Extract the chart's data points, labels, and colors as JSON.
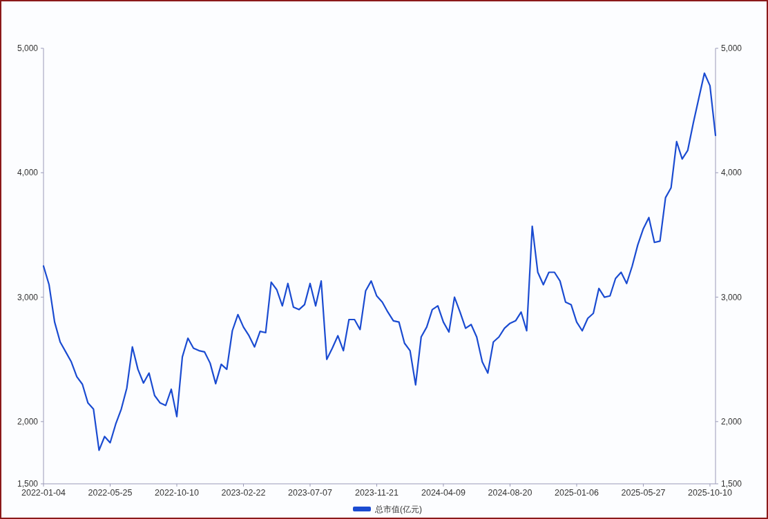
{
  "chart_data": {
    "type": "line",
    "categories": [
      "2022-01-04",
      null,
      null,
      null,
      null,
      null,
      null,
      null,
      null,
      null,
      null,
      null,
      "2022-05-25",
      null,
      null,
      null,
      null,
      null,
      null,
      null,
      null,
      null,
      null,
      null,
      "2022-10-10",
      null,
      null,
      null,
      null,
      null,
      null,
      null,
      null,
      null,
      null,
      null,
      "2023-02-22",
      null,
      null,
      null,
      null,
      null,
      null,
      null,
      null,
      null,
      null,
      null,
      "2023-07-07",
      null,
      null,
      null,
      null,
      null,
      null,
      null,
      null,
      null,
      null,
      null,
      "2023-11-21",
      null,
      null,
      null,
      null,
      null,
      null,
      null,
      null,
      null,
      null,
      null,
      "2024-04-09",
      null,
      null,
      null,
      null,
      null,
      null,
      null,
      null,
      null,
      null,
      null,
      "2024-08-20",
      null,
      null,
      null,
      null,
      null,
      null,
      null,
      null,
      null,
      null,
      null,
      "2025-01-06",
      null,
      null,
      null,
      null,
      null,
      null,
      null,
      null,
      null,
      null,
      null,
      "2025-05-27",
      null,
      null,
      null,
      null,
      null,
      null,
      null,
      null,
      null,
      null,
      null,
      "2025-10-10",
      null
    ],
    "series": [
      {
        "name": "总市值(亿元)",
        "color": "#1a4bd1",
        "values": [
          3250,
          3100,
          2800,
          2640,
          2560,
          2480,
          2360,
          2300,
          2150,
          2100,
          1770,
          1880,
          1830,
          1980,
          2100,
          2270,
          2600,
          2420,
          2310,
          2390,
          2210,
          2150,
          2130,
          2260,
          2040,
          2520,
          2670,
          2590,
          2570,
          2560,
          2470,
          2305,
          2460,
          2420,
          2730,
          2860,
          2760,
          2690,
          2600,
          2725,
          2715,
          3120,
          3060,
          2930,
          3110,
          2920,
          2900,
          2940,
          3110,
          2930,
          3130,
          2500,
          2590,
          2690,
          2570,
          2820,
          2820,
          2740,
          3050,
          3130,
          3010,
          2960,
          2880,
          2810,
          2800,
          2630,
          2570,
          2295,
          2680,
          2760,
          2900,
          2930,
          2800,
          2720,
          3000,
          2880,
          2750,
          2780,
          2680,
          2480,
          2390,
          2640,
          2680,
          2750,
          2790,
          2810,
          2880,
          2730,
          3570,
          3200,
          3100,
          3200,
          3200,
          3130,
          2960,
          2940,
          2800,
          2730,
          2830,
          2870,
          3070,
          3000,
          3010,
          3150,
          3200,
          3110,
          3250,
          3420,
          3550,
          3640,
          3440,
          3450,
          3800,
          3880,
          4250,
          4110,
          4180,
          4400,
          4600,
          4800,
          4700,
          4300
        ]
      }
    ],
    "ylim": [
      1500,
      5000
    ],
    "yticks": [
      {
        "value": 1500,
        "label": "1,500"
      },
      {
        "value": 2000,
        "label": "2,000"
      },
      {
        "value": 3000,
        "label": "3,000"
      },
      {
        "value": 4000,
        "label": "4,000"
      },
      {
        "value": 5000,
        "label": "5,000"
      }
    ],
    "y2lim": [
      1500,
      5000
    ],
    "y2ticks": [
      {
        "value": 1500,
        "label": "1,500"
      },
      {
        "value": 2000,
        "label": "2,000"
      },
      {
        "value": 3000,
        "label": "3,000"
      },
      {
        "value": 4000,
        "label": "4,000"
      },
      {
        "value": 5000,
        "label": "5,000"
      }
    ],
    "legend": "bottom",
    "grid": false,
    "marker": "none",
    "line_style": "solid"
  }
}
